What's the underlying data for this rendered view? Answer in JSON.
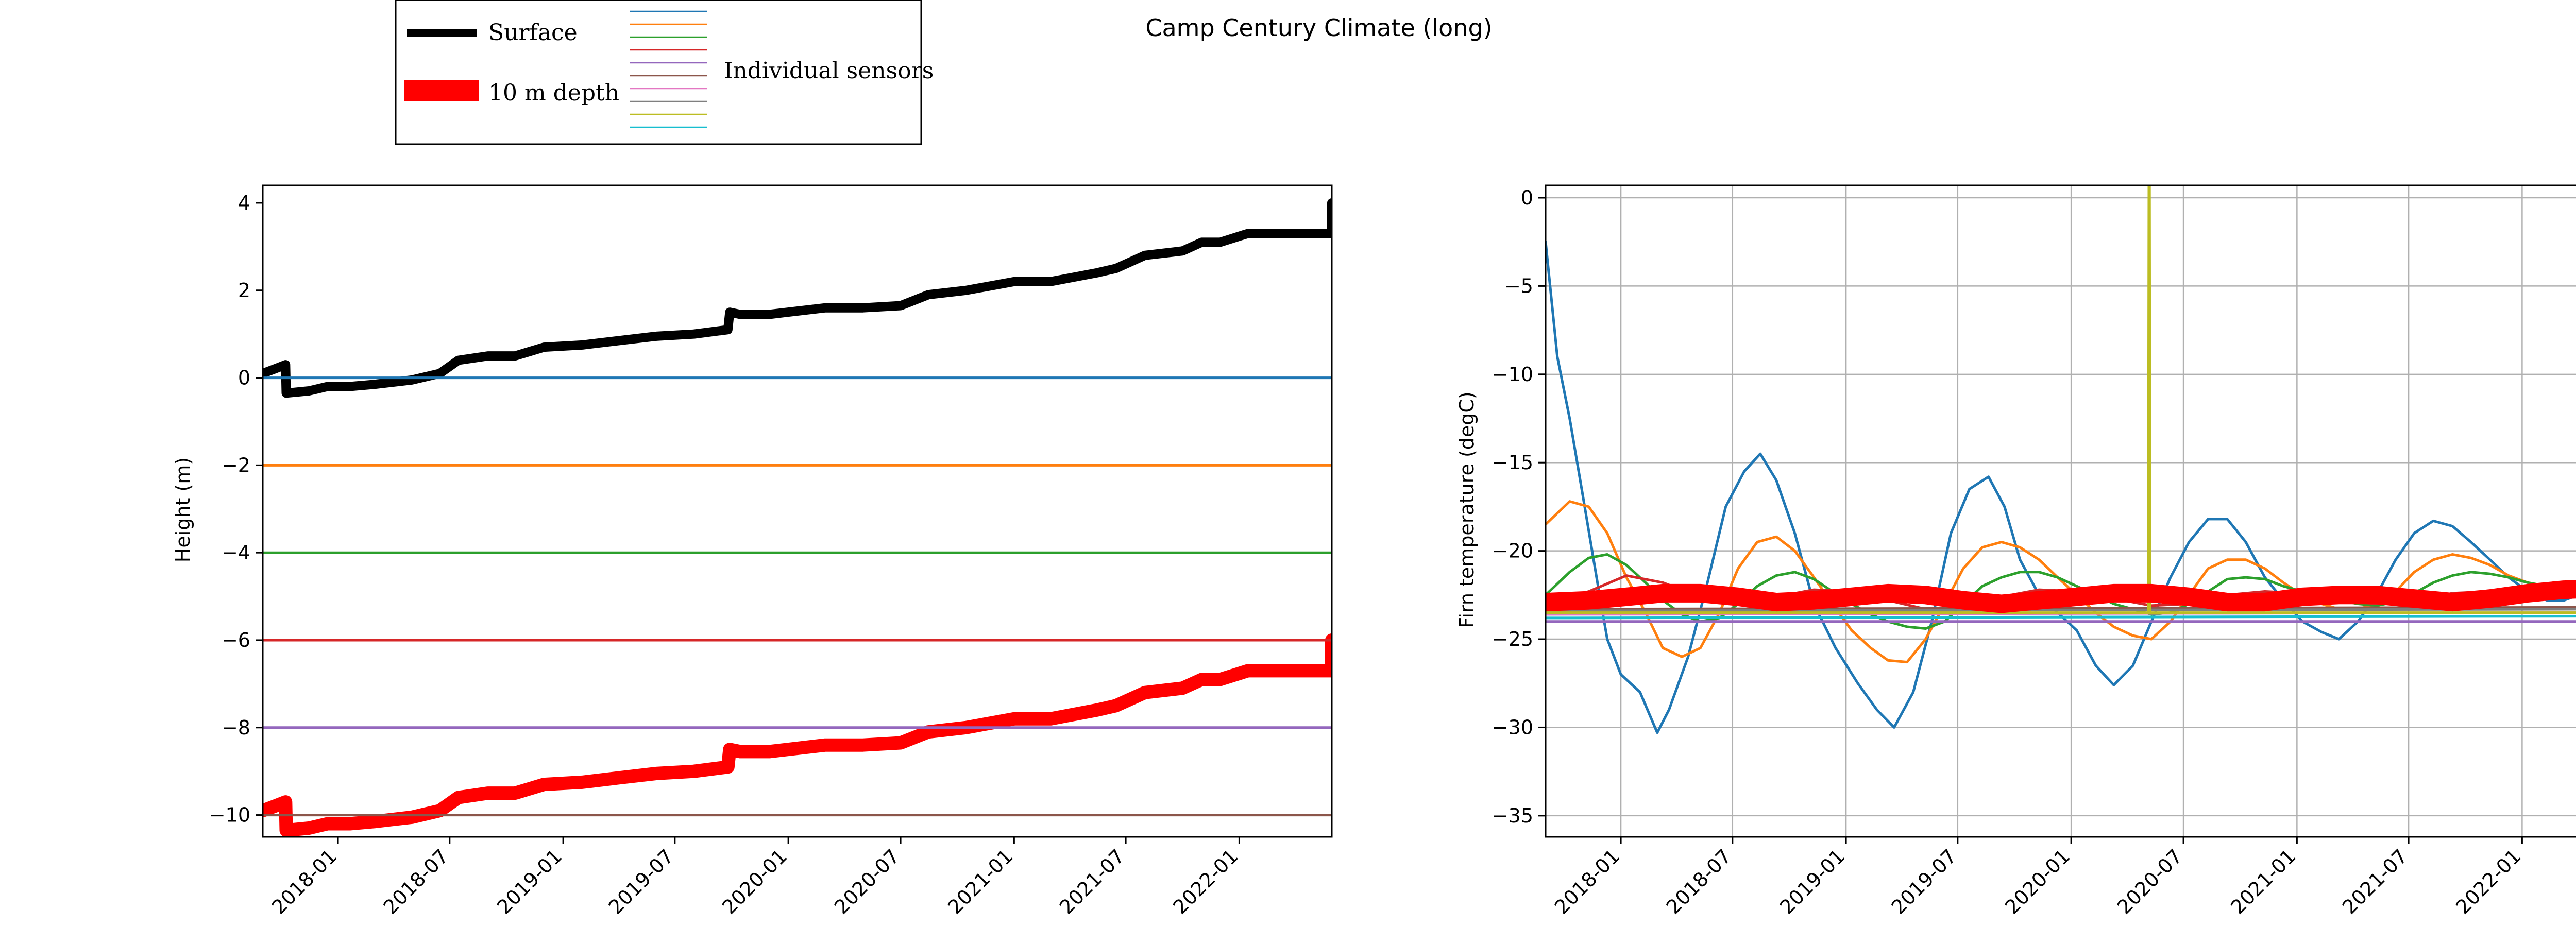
{
  "figure": {
    "title": "Camp Century Climate (long)"
  },
  "legend": {
    "items": [
      {
        "label": "Surface",
        "color": "#000000"
      },
      {
        "label": "10 m depth",
        "color": "#ff0000"
      }
    ],
    "sensors_label": "Individual sensors",
    "sensor_colors": [
      "#1f77b4",
      "#ff7f0e",
      "#2ca02c",
      "#d62728",
      "#9467bd",
      "#8c564b",
      "#e377c2",
      "#7f7f7f",
      "#bcbd22",
      "#17becf"
    ]
  },
  "chart_data": [
    {
      "type": "line",
      "title": "",
      "xlabel": "",
      "ylabel": "Height (m)",
      "xlim": [
        "2017-09-01",
        "2022-05-31"
      ],
      "ylim": [
        -10.5,
        4.4
      ],
      "xticks": [
        "2018-01",
        "2018-07",
        "2019-01",
        "2019-07",
        "2020-01",
        "2020-07",
        "2021-01",
        "2021-07",
        "2022-01"
      ],
      "yticks": [
        4,
        2,
        0,
        -2,
        -4,
        -6,
        -8,
        -10
      ],
      "ytick_labels": [
        "4",
        "2",
        "0",
        "−2",
        "−4",
        "−6",
        "−8",
        "−10"
      ],
      "grid": false,
      "series": [
        {
          "name": "Surface",
          "color": "#000000",
          "x": [
            "2017-09-01",
            "2017-09-20",
            "2017-10-08",
            "2017-10-09",
            "2017-11-15",
            "2017-12-15",
            "2018-01-20",
            "2018-03-01",
            "2018-05-01",
            "2018-06-15",
            "2018-07-15",
            "2018-09-01",
            "2018-10-15",
            "2018-12-01",
            "2019-02-01",
            "2019-04-01",
            "2019-06-01",
            "2019-08-01",
            "2019-09-25",
            "2019-09-28",
            "2019-10-15",
            "2019-12-01",
            "2020-03-01",
            "2020-05-01",
            "2020-07-01",
            "2020-08-15",
            "2020-10-15",
            "2021-01-01",
            "2021-03-01",
            "2021-05-15",
            "2021-06-15",
            "2021-08-01",
            "2021-10-01",
            "2021-11-01",
            "2021-12-01",
            "2022-01-15",
            "2022-03-01",
            "2022-05-30",
            "2022-05-31"
          ],
          "y": [
            0.1,
            0.2,
            0.3,
            -0.35,
            -0.3,
            -0.2,
            -0.2,
            -0.15,
            -0.05,
            0.1,
            0.4,
            0.5,
            0.5,
            0.7,
            0.75,
            0.85,
            0.95,
            1.0,
            1.1,
            1.5,
            1.45,
            1.45,
            1.6,
            1.6,
            1.65,
            1.9,
            2.0,
            2.2,
            2.2,
            2.4,
            2.5,
            2.8,
            2.9,
            3.1,
            3.1,
            3.3,
            3.3,
            3.3,
            4.0
          ]
        },
        {
          "name": "10 m depth",
          "color": "#ff0000",
          "x": [
            "2017-09-01",
            "2017-09-20",
            "2017-10-08",
            "2017-10-09",
            "2017-11-15",
            "2017-12-15",
            "2018-01-20",
            "2018-03-01",
            "2018-05-01",
            "2018-06-15",
            "2018-07-15",
            "2018-09-01",
            "2018-10-15",
            "2018-12-01",
            "2019-02-01",
            "2019-04-01",
            "2019-06-01",
            "2019-08-01",
            "2019-09-25",
            "2019-09-28",
            "2019-10-15",
            "2019-12-01",
            "2020-03-01",
            "2020-05-01",
            "2020-07-01",
            "2020-08-15",
            "2020-10-15",
            "2021-01-01",
            "2021-03-01",
            "2021-05-15",
            "2021-06-15",
            "2021-08-01",
            "2021-10-01",
            "2021-11-01",
            "2021-12-01",
            "2022-01-15",
            "2022-03-01",
            "2022-05-30",
            "2022-05-31"
          ],
          "y": [
            -9.9,
            -9.8,
            -9.7,
            -10.35,
            -10.3,
            -10.2,
            -10.2,
            -10.15,
            -10.05,
            -9.9,
            -9.6,
            -9.5,
            -9.5,
            -9.3,
            -9.25,
            -9.15,
            -9.05,
            -9.0,
            -8.9,
            -8.5,
            -8.55,
            -8.55,
            -8.4,
            -8.4,
            -8.35,
            -8.1,
            -8.0,
            -7.8,
            -7.8,
            -7.6,
            -7.5,
            -7.2,
            -7.1,
            -6.9,
            -6.9,
            -6.7,
            -6.7,
            -6.7,
            -6.0
          ]
        },
        {
          "name": "",
          "color": "#1f77b4",
          "x": [
            "2017-09-01",
            "2022-05-31"
          ],
          "y": [
            0,
            0
          ]
        },
        {
          "name": "",
          "color": "#ff7f0e",
          "x": [
            "2017-09-01",
            "2022-05-31"
          ],
          "y": [
            -2,
            -2
          ]
        },
        {
          "name": "",
          "color": "#2ca02c",
          "x": [
            "2017-09-01",
            "2022-05-31"
          ],
          "y": [
            -4,
            -4
          ]
        },
        {
          "name": "",
          "color": "#d62728",
          "x": [
            "2017-09-01",
            "2022-05-31"
          ],
          "y": [
            -6,
            -6
          ]
        },
        {
          "name": "",
          "color": "#9467bd",
          "x": [
            "2017-09-01",
            "2022-05-31"
          ],
          "y": [
            -8,
            -8
          ]
        },
        {
          "name": "",
          "color": "#8c564b",
          "x": [
            "2017-09-01",
            "2022-05-31"
          ],
          "y": [
            -10,
            -10
          ]
        }
      ]
    },
    {
      "type": "line",
      "title": "",
      "xlabel": "",
      "ylabel": "Firn temperature (degC)",
      "xlim": [
        "2017-09-01",
        "2022-05-31"
      ],
      "ylim": [
        -36.2,
        0.7
      ],
      "xticks": [
        "2018-01",
        "2018-07",
        "2019-01",
        "2019-07",
        "2020-01",
        "2020-07",
        "2021-01",
        "2021-07",
        "2022-01"
      ],
      "yticks": [
        0,
        -5,
        -10,
        -15,
        -20,
        -25,
        -30,
        -35
      ],
      "ytick_labels": [
        "0",
        "−5",
        "−10",
        "−15",
        "−20",
        "−25",
        "−30",
        "−35"
      ],
      "grid": true,
      "series": [
        {
          "name": "",
          "color": "#1f77b4",
          "x": [
            "2017-09-01",
            "2017-09-20",
            "2017-10-10",
            "2017-11-01",
            "2017-11-25",
            "2017-12-10",
            "2018-01-01",
            "2018-02-01",
            "2018-03-01",
            "2018-03-20",
            "2018-04-20",
            "2018-05-20",
            "2018-06-20",
            "2018-07-20",
            "2018-08-15",
            "2018-09-10",
            "2018-10-10",
            "2018-11-10",
            "2018-12-15",
            "2019-01-20",
            "2019-02-20",
            "2019-03-20",
            "2019-04-20",
            "2019-05-20",
            "2019-06-20",
            "2019-07-20",
            "2019-08-20",
            "2019-09-15",
            "2019-10-10",
            "2019-11-10",
            "2019-12-10",
            "2020-01-10",
            "2020-02-10",
            "2020-03-10",
            "2020-04-10",
            "2020-05-10",
            "2020-06-10",
            "2020-07-10",
            "2020-08-10",
            "2020-09-10",
            "2020-10-10",
            "2020-11-10",
            "2020-12-10",
            "2021-01-10",
            "2021-02-10",
            "2021-03-10",
            "2021-04-10",
            "2021-05-10",
            "2021-06-10",
            "2021-07-10",
            "2021-08-10",
            "2021-09-10",
            "2021-10-10",
            "2021-11-10",
            "2021-12-10",
            "2022-01-10",
            "2022-02-10",
            "2022-03-10",
            "2022-04-10",
            "2022-05-31"
          ],
          "y": [
            -2.5,
            -9,
            -12.5,
            -17,
            -22,
            -25,
            -27,
            -28,
            -30.3,
            -29,
            -26,
            -22,
            -17.5,
            -15.5,
            -14.5,
            -16,
            -19,
            -23,
            -25.5,
            -27.5,
            -29,
            -30,
            -28,
            -24,
            -19,
            -16.5,
            -15.8,
            -17.5,
            -20.5,
            -22.5,
            -23.5,
            -24.5,
            -26.5,
            -27.6,
            -26.5,
            -24,
            -21.5,
            -19.5,
            -18.2,
            -18.2,
            -19.5,
            -21.5,
            -22.8,
            -24,
            -24.6,
            -25,
            -24,
            -22.5,
            -20.5,
            -19,
            -18.3,
            -18.6,
            -19.5,
            -20.5,
            -21.5,
            -22.3,
            -22.8,
            -22.8,
            -22.4,
            -22.2
          ]
        },
        {
          "name": "",
          "color": "#ff7f0e",
          "x": [
            "2017-09-01",
            "2017-10-10",
            "2017-11-10",
            "2017-12-10",
            "2018-01-10",
            "2018-02-10",
            "2018-03-10",
            "2018-04-10",
            "2018-05-10",
            "2018-06-10",
            "2018-07-10",
            "2018-08-10",
            "2018-09-10",
            "2018-10-10",
            "2018-11-10",
            "2018-12-10",
            "2019-01-10",
            "2019-02-10",
            "2019-03-10",
            "2019-04-10",
            "2019-05-10",
            "2019-06-10",
            "2019-07-10",
            "2019-08-10",
            "2019-09-10",
            "2019-10-10",
            "2019-11-10",
            "2019-12-10",
            "2020-01-10",
            "2020-02-10",
            "2020-03-10",
            "2020-04-10",
            "2020-05-10",
            "2020-06-10",
            "2020-07-10",
            "2020-08-10",
            "2020-09-10",
            "2020-10-10",
            "2020-11-10",
            "2020-12-10",
            "2021-01-10",
            "2021-02-10",
            "2021-03-10",
            "2021-04-10",
            "2021-05-10",
            "2021-06-10",
            "2021-07-10",
            "2021-08-10",
            "2021-09-10",
            "2021-10-10",
            "2021-11-10",
            "2021-12-10",
            "2022-01-10",
            "2022-02-10",
            "2022-03-10",
            "2022-04-10",
            "2022-05-31"
          ],
          "y": [
            -18.5,
            -17.2,
            -17.5,
            -19,
            -21.5,
            -23.5,
            -25.5,
            -26,
            -25.5,
            -23.5,
            -21,
            -19.5,
            -19.2,
            -20,
            -21.5,
            -23,
            -24.5,
            -25.5,
            -26.2,
            -26.3,
            -25,
            -23,
            -21,
            -19.8,
            -19.5,
            -19.8,
            -20.5,
            -21.5,
            -22.5,
            -23.5,
            -24.3,
            -24.8,
            -25,
            -24,
            -22.5,
            -21,
            -20.5,
            -20.5,
            -21,
            -21.8,
            -22.5,
            -23,
            -23.3,
            -23.3,
            -23,
            -22.3,
            -21.2,
            -20.5,
            -20.2,
            -20.4,
            -20.8,
            -21.4,
            -21.8,
            -22,
            -22.1,
            -22,
            -22
          ]
        },
        {
          "name": "",
          "color": "#2ca02c",
          "x": [
            "2017-09-01",
            "2017-10-10",
            "2017-11-10",
            "2017-12-10",
            "2018-01-10",
            "2018-02-10",
            "2018-03-10",
            "2018-04-10",
            "2018-05-10",
            "2018-06-10",
            "2018-07-10",
            "2018-08-10",
            "2018-09-10",
            "2018-10-10",
            "2018-11-10",
            "2018-12-10",
            "2019-01-10",
            "2019-02-10",
            "2019-03-10",
            "2019-04-10",
            "2019-05-10",
            "2019-06-10",
            "2019-07-10",
            "2019-08-10",
            "2019-09-10",
            "2019-10-10",
            "2019-11-10",
            "2019-12-10",
            "2020-01-10",
            "2020-02-10",
            "2020-03-10",
            "2020-04-10",
            "2020-05-10",
            "2020-06-10",
            "2020-07-10",
            "2020-08-10",
            "2020-09-10",
            "2020-10-10",
            "2020-11-10",
            "2020-12-10",
            "2021-01-10",
            "2021-02-10",
            "2021-03-10",
            "2021-04-10",
            "2021-05-10",
            "2021-06-10",
            "2021-07-10",
            "2021-08-10",
            "2021-09-10",
            "2021-10-10",
            "2021-11-10",
            "2021-12-10",
            "2022-01-10",
            "2022-02-10",
            "2022-03-10",
            "2022-04-10",
            "2022-05-31"
          ],
          "y": [
            -22.5,
            -21.2,
            -20.4,
            -20.2,
            -20.8,
            -21.8,
            -22.8,
            -23.6,
            -24,
            -23.8,
            -23,
            -22,
            -21.4,
            -21.2,
            -21.6,
            -22.3,
            -23,
            -23.6,
            -24,
            -24.3,
            -24.4,
            -24,
            -23,
            -22,
            -21.5,
            -21.2,
            -21.2,
            -21.5,
            -22,
            -22.5,
            -23,
            -23.3,
            -23.6,
            -23.5,
            -23,
            -22.3,
            -21.6,
            -21.5,
            -21.6,
            -22,
            -22.3,
            -22.6,
            -22.8,
            -23,
            -23.1,
            -22.9,
            -22.4,
            -21.8,
            -21.4,
            -21.2,
            -21.3,
            -21.5,
            -21.8,
            -22,
            -22.1,
            -22.1,
            -22.2
          ]
        },
        {
          "name": "",
          "color": "#d62728",
          "x": [
            "2017-09-01",
            "2017-11-10",
            "2018-01-10",
            "2018-03-10",
            "2018-05-10",
            "2018-07-10",
            "2018-09-10",
            "2018-11-10",
            "2019-01-10",
            "2019-03-10",
            "2019-05-10",
            "2019-07-10",
            "2019-09-10",
            "2019-11-10",
            "2020-01-10",
            "2020-03-10",
            "2020-05-10",
            "2020-07-10",
            "2020-09-10",
            "2020-11-10",
            "2021-01-10",
            "2021-03-10",
            "2021-05-10",
            "2021-07-10",
            "2021-09-10",
            "2021-11-10",
            "2022-01-10",
            "2022-03-10",
            "2022-05-31"
          ],
          "y": [
            -23,
            -22.3,
            -21.4,
            -21.8,
            -22.6,
            -23,
            -22.6,
            -22.2,
            -22.3,
            -22.8,
            -23.3,
            -23.2,
            -22.6,
            -22.2,
            -22.3,
            -22.7,
            -23.1,
            -23,
            -22.5,
            -22.3,
            -22.4,
            -22.8,
            -23,
            -22.8,
            -22.4,
            -22.3,
            -22.4,
            -22.6,
            -22.7
          ]
        },
        {
          "name": "",
          "color": "#9467bd",
          "x": [
            "2017-09-01",
            "2022-05-31"
          ],
          "y": [
            -24.0,
            -24.0
          ]
        },
        {
          "name": "",
          "color": "#8c564b",
          "x": [
            "2017-09-01",
            "2022-05-31"
          ],
          "y": [
            -23.3,
            -23.2
          ]
        },
        {
          "name": "",
          "color": "#e377c2",
          "x": [
            "2017-09-01",
            "2022-05-31"
          ],
          "y": [
            -23.6,
            -23.5
          ]
        },
        {
          "name": "",
          "color": "#7f7f7f",
          "x": [
            "2017-09-01",
            "2022-05-31"
          ],
          "y": [
            -23.4,
            -23.3
          ]
        },
        {
          "name": "",
          "color": "#17becf",
          "x": [
            "2017-09-01",
            "2022-05-31"
          ],
          "y": [
            -23.8,
            -23.7
          ]
        },
        {
          "name": "",
          "color": "#bcbd22",
          "x": [
            "2017-09-01",
            "2020-05-05",
            "2020-05-06",
            "2020-05-07",
            "2020-05-08",
            "2022-05-31"
          ],
          "y": [
            -23.5,
            -23.5,
            0.7,
            0.7,
            -23.5,
            -23.5
          ]
        },
        {
          "name": "10 m depth",
          "color": "#ff0000",
          "x": [
            "2017-09-01",
            "2017-11-10",
            "2018-01-10",
            "2018-03-10",
            "2018-05-10",
            "2018-07-10",
            "2018-09-10",
            "2018-11-10",
            "2019-01-10",
            "2019-03-10",
            "2019-05-10",
            "2019-07-10",
            "2019-09-10",
            "2019-11-10",
            "2020-01-10",
            "2020-03-10",
            "2020-05-10",
            "2020-07-10",
            "2020-09-10",
            "2020-11-10",
            "2021-01-10",
            "2021-03-10",
            "2021-05-10",
            "2021-07-10",
            "2021-09-10",
            "2021-11-10",
            "2022-01-10",
            "2022-03-10",
            "2022-05-31"
          ],
          "y": [
            -22.9,
            -22.8,
            -22.6,
            -22.4,
            -22.4,
            -22.6,
            -22.9,
            -22.8,
            -22.6,
            -22.4,
            -22.5,
            -22.8,
            -23,
            -22.8,
            -22.6,
            -22.4,
            -22.4,
            -22.6,
            -22.9,
            -22.9,
            -22.6,
            -22.5,
            -22.5,
            -22.7,
            -22.9,
            -22.7,
            -22.4,
            -22.2,
            -22.1
          ]
        }
      ]
    }
  ]
}
